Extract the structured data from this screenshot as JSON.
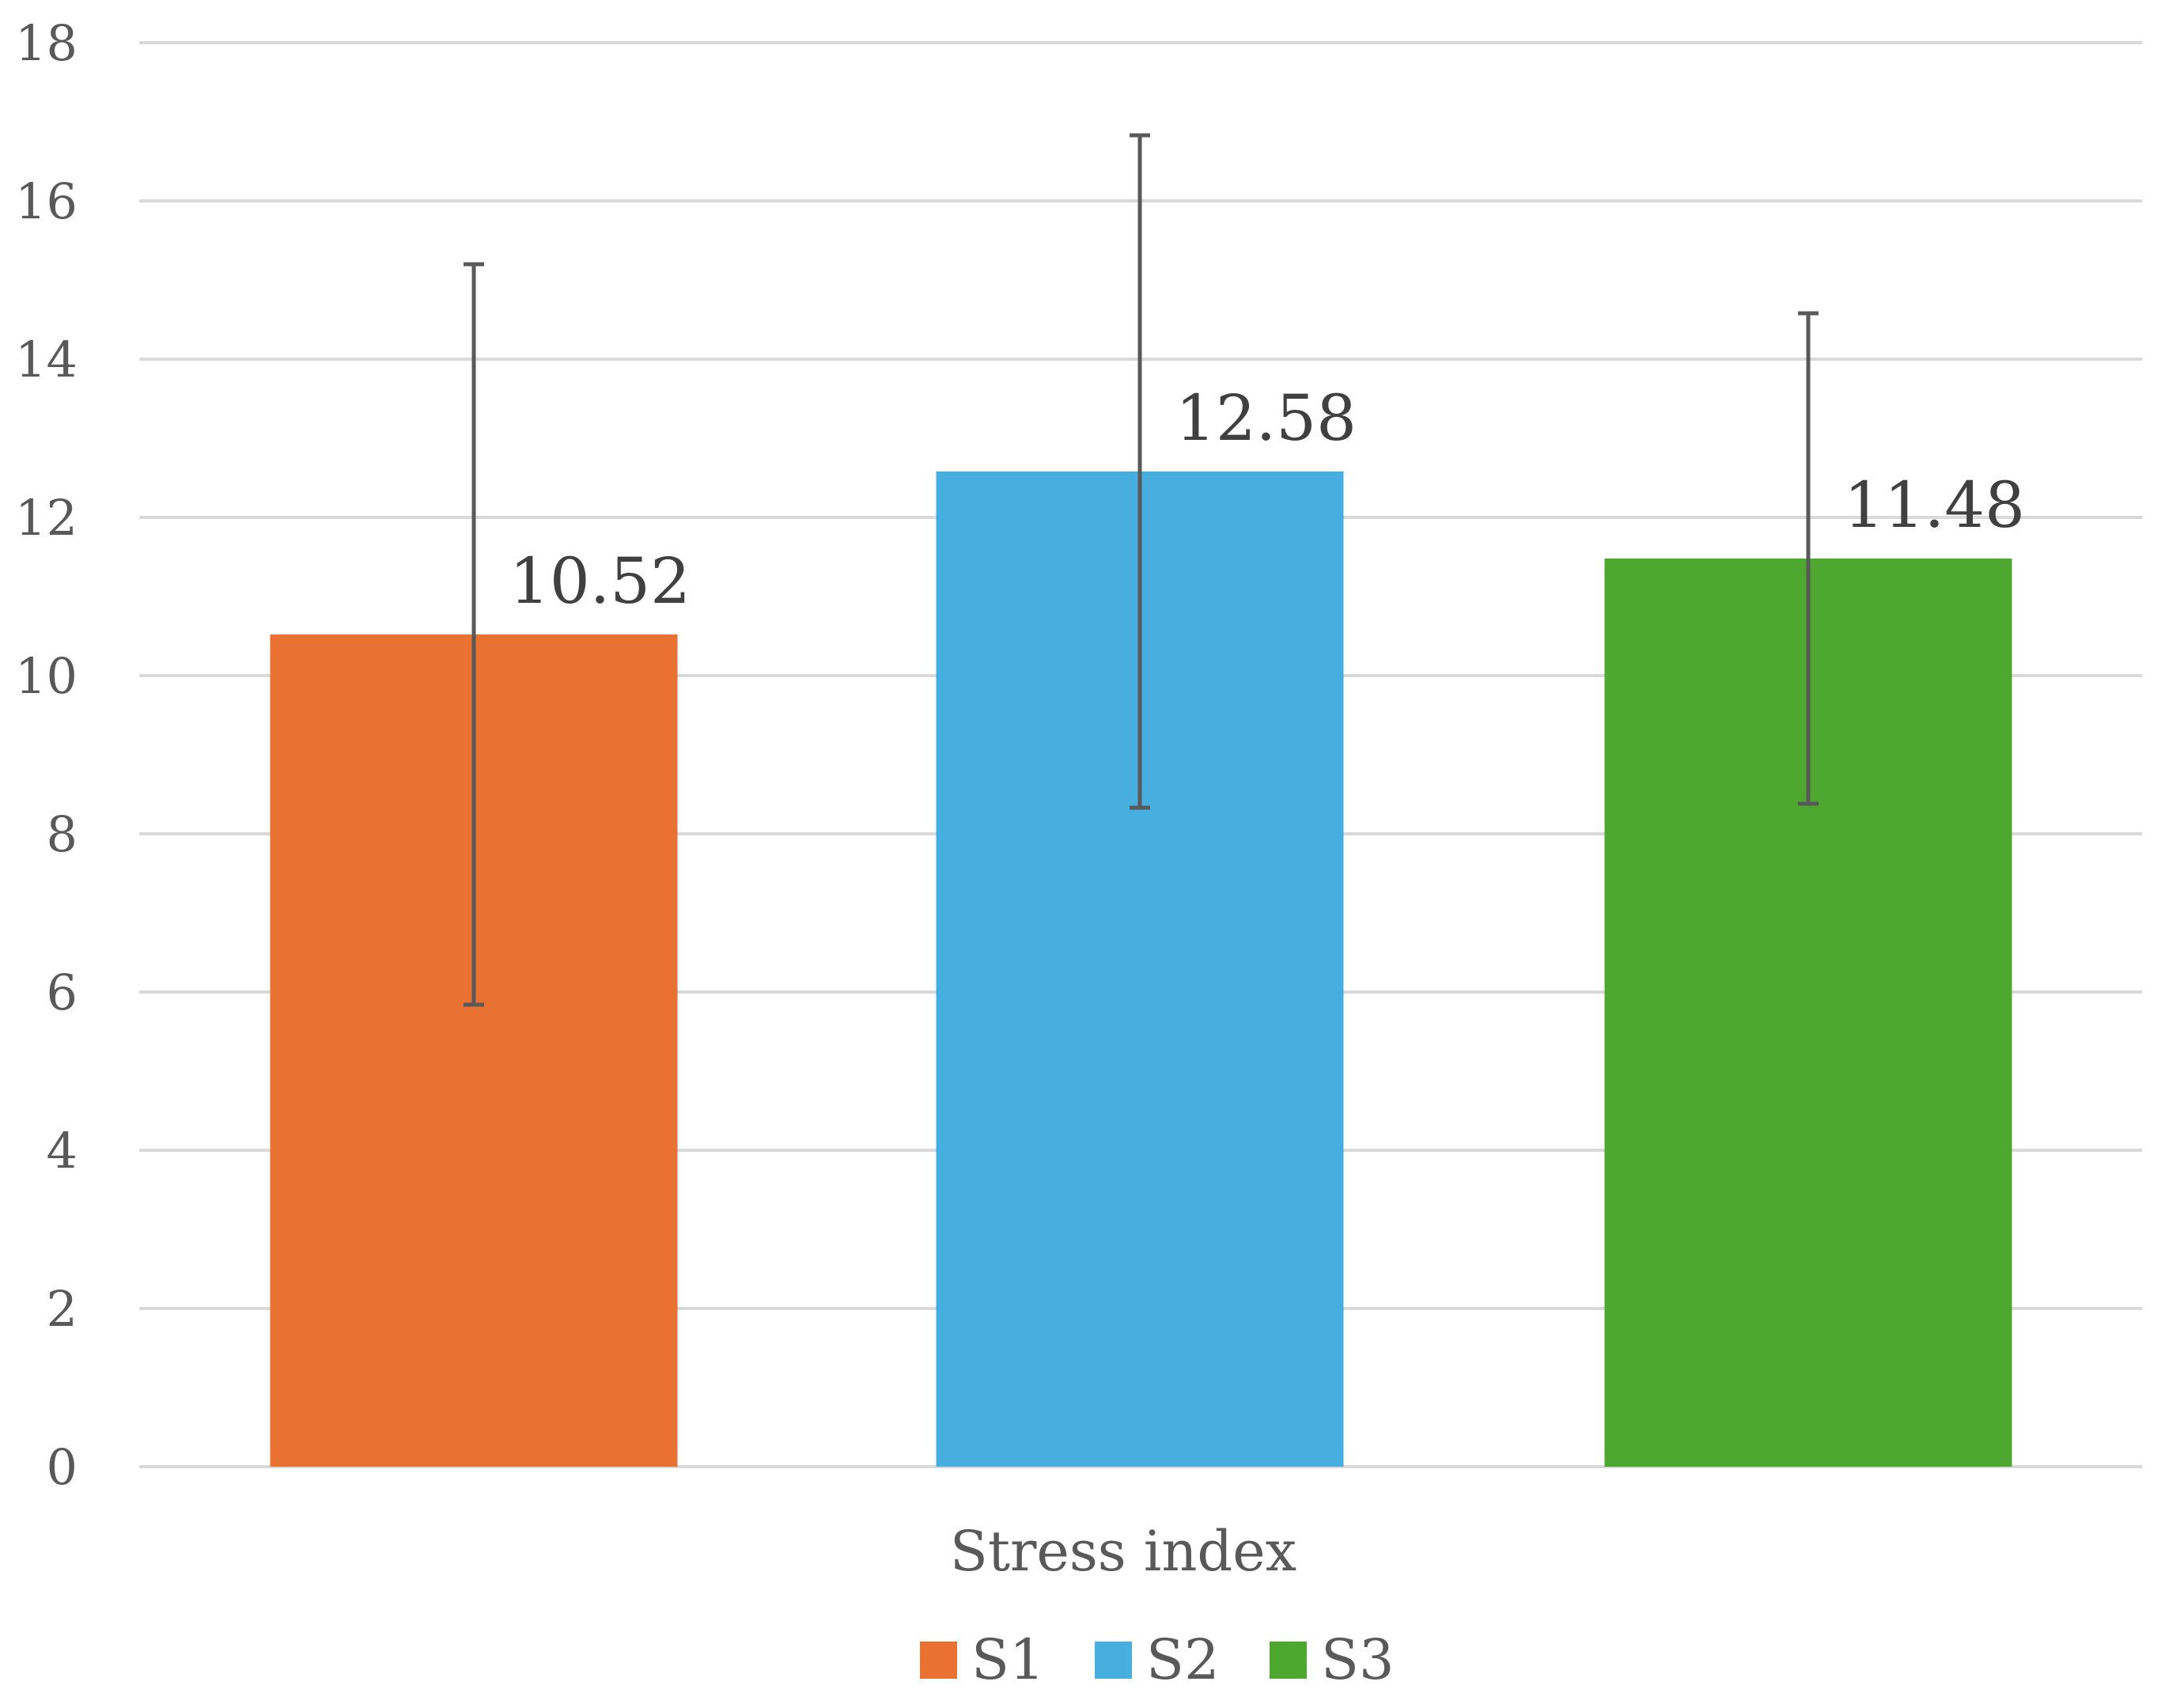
{
  "chart_data": {
    "type": "bar",
    "categories": [
      "Stress index"
    ],
    "series": [
      {
        "name": "S1",
        "values": [
          10.52
        ],
        "error": [
          4.68
        ],
        "color": "#E97132",
        "label": "10.52"
      },
      {
        "name": "S2",
        "values": [
          12.58
        ],
        "error": [
          4.25
        ],
        "color": "#47AFDF",
        "label": "12.58"
      },
      {
        "name": "S3",
        "values": [
          11.48
        ],
        "error": [
          3.1
        ],
        "color": "#4EA72E",
        "label": "11.48"
      }
    ],
    "ylim": [
      0,
      18
    ],
    "yticks": [
      "0",
      "2",
      "4",
      "6",
      "8",
      "10",
      "12",
      "14",
      "16",
      "18"
    ],
    "grid": true,
    "legend_position": "bottom"
  }
}
